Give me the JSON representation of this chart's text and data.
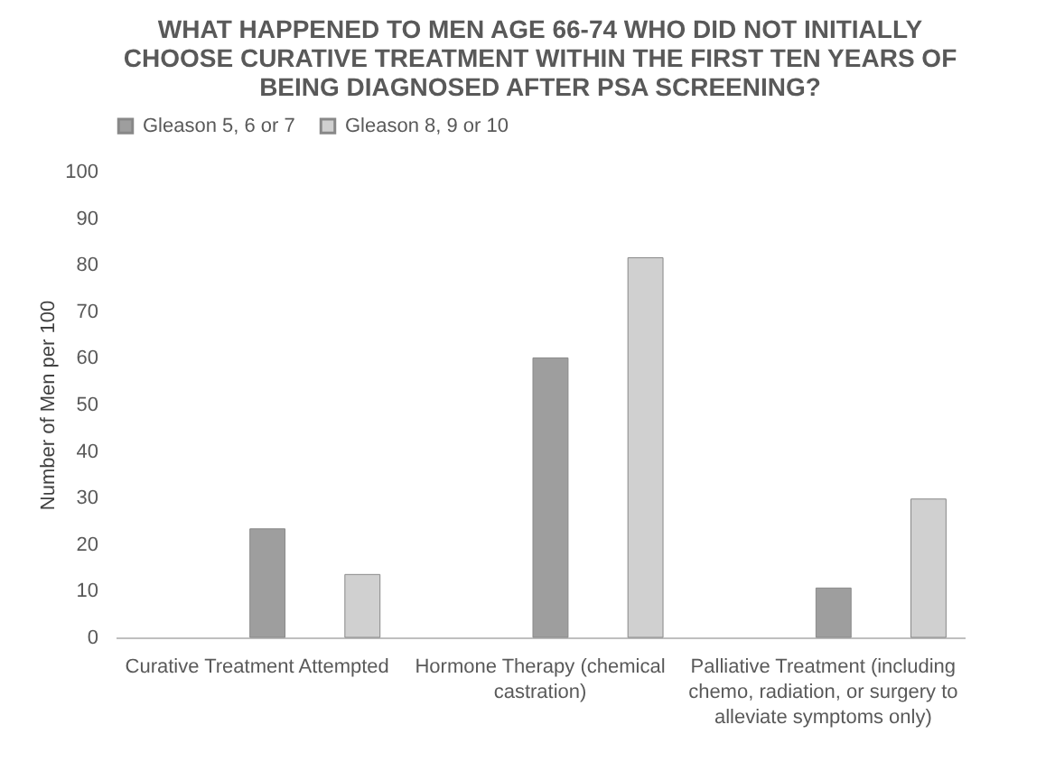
{
  "chart_data": {
    "type": "bar",
    "title": "WHAT HAPPENED TO MEN AGE 66-74 WHO DID NOT INITIALLY CHOOSE CURATIVE TREATMENT WITHIN THE FIRST TEN YEARS OF BEING DIAGNOSED AFTER PSA SCREENING?",
    "ylabel": "Number of Men per 100",
    "categories": [
      "Curative Treatment Attempted",
      "Hormone Therapy (chemical castration)",
      "Palliative Treatment (including chemo, radiation, or surgery to alleviate symptoms only)"
    ],
    "series": [
      {
        "name": "Gleason 5, 6 or 7",
        "color": "#9e9e9e",
        "values": [
          23.3,
          60,
          10.6
        ]
      },
      {
        "name": "Gleason 8, 9 or 10",
        "color": "#d0d0d0",
        "values": [
          13.5,
          81.5,
          29.7
        ]
      }
    ],
    "ylim": [
      0,
      100
    ],
    "yticks": [
      0,
      10,
      20,
      30,
      40,
      50,
      60,
      70,
      80,
      90,
      100
    ],
    "grid": false,
    "legend": "top"
  }
}
